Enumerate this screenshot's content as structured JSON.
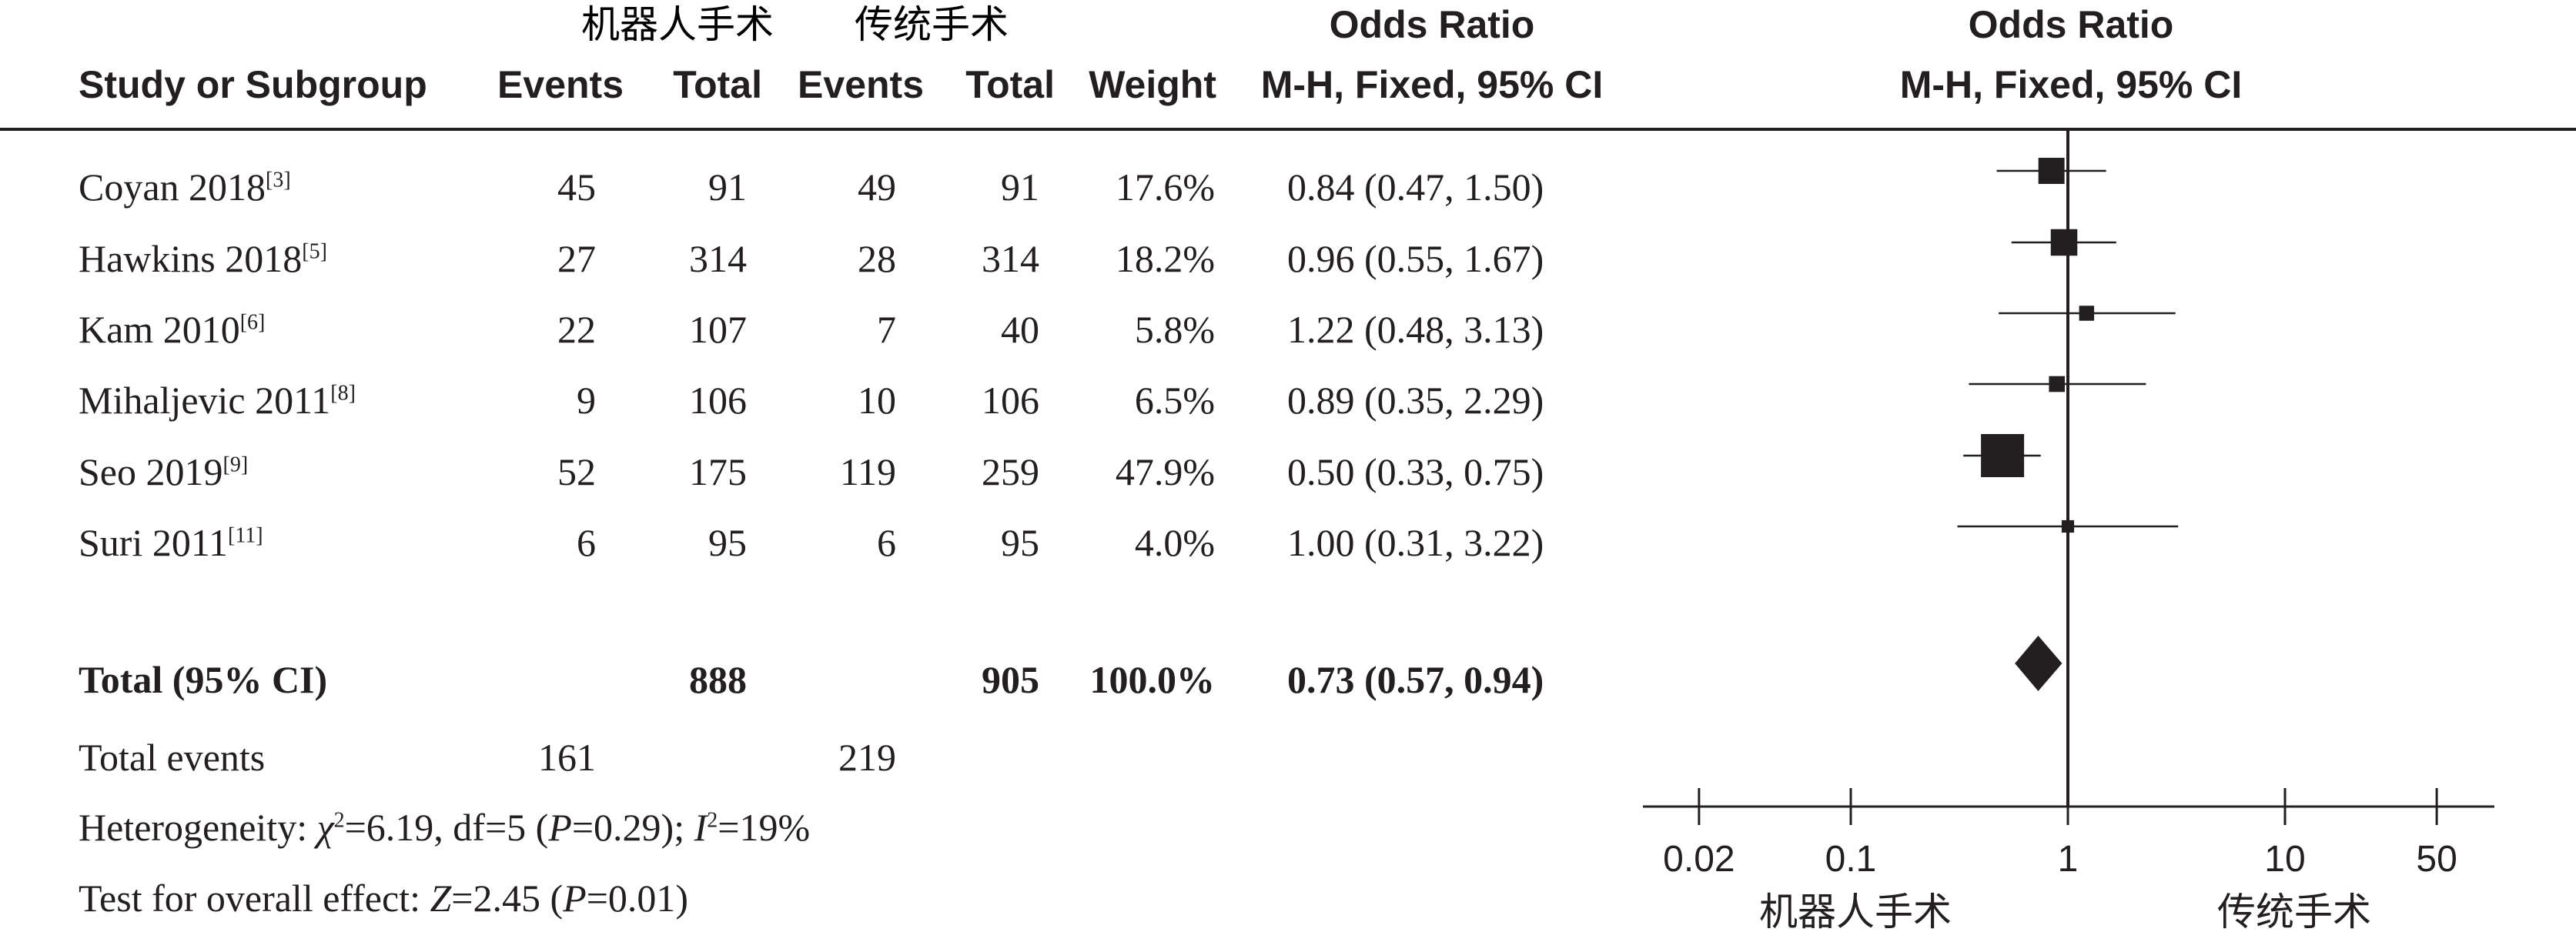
{
  "header": {
    "group_experimental": "机器人手术",
    "group_control": "传统手术",
    "study_col": "Study or Subgroup",
    "events_col": "Events",
    "total_col": "Total",
    "weight_col": "Weight",
    "or_title": "Odds Ratio",
    "or_method": "M-H, Fixed, 95% CI",
    "plot_title": "Odds Ratio",
    "plot_method": "M-H, Fixed, 95% CI"
  },
  "studies": [
    {
      "name": "Coyan 2018",
      "ref": "[3]",
      "e1": "45",
      "t1": "91",
      "e2": "49",
      "t2": "91",
      "weight": "17.6%",
      "or": "0.84 (0.47, 1.50)"
    },
    {
      "name": "Hawkins 2018",
      "ref": "[5]",
      "e1": "27",
      "t1": "314",
      "e2": "28",
      "t2": "314",
      "weight": "18.2%",
      "or": "0.96 (0.55, 1.67)"
    },
    {
      "name": "Kam 2010",
      "ref": "[6]",
      "e1": "22",
      "t1": "107",
      "e2": "7",
      "t2": "40",
      "weight": "5.8%",
      "or": "1.22 (0.48, 3.13)"
    },
    {
      "name": "Mihaljevic 2011",
      "ref": "[8]",
      "e1": "9",
      "t1": "106",
      "e2": "10",
      "t2": "106",
      "weight": "6.5%",
      "or": "0.89 (0.35, 2.29)"
    },
    {
      "name": "Seo 2019",
      "ref": "[9]",
      "e1": "52",
      "t1": "175",
      "e2": "119",
      "t2": "259",
      "weight": "47.9%",
      "or": "0.50 (0.33, 0.75)"
    },
    {
      "name": "Suri 2011",
      "ref": "[11]",
      "e1": "6",
      "t1": "95",
      "e2": "6",
      "t2": "95",
      "weight": "4.0%",
      "or": "1.00 (0.31, 3.22)"
    }
  ],
  "total": {
    "label": "Total (95% CI)",
    "t1": "888",
    "t2": "905",
    "weight": "100.0%",
    "or": "0.73 (0.57, 0.94)"
  },
  "total_events": {
    "label": "Total events",
    "e1": "161",
    "e2": "219"
  },
  "heterogeneity": {
    "prefix": "Heterogeneity: ",
    "chi": "χ",
    "chi_sup": "2",
    "chi_rest": "=6.19, df=5 (",
    "p": "P",
    "p_rest": "=0.29); ",
    "i": "I",
    "i_sup": "2",
    "i_rest": "=19%"
  },
  "overall": {
    "prefix": "Test for overall effect: ",
    "z": "Z",
    "z_rest": "=2.45 (",
    "p": "P",
    "p_rest": "=0.01)"
  },
  "chart_data": {
    "type": "forest",
    "scale": "log",
    "xlim": [
      0.02,
      50
    ],
    "ticks": [
      0.02,
      0.1,
      1,
      10,
      50
    ],
    "tick_labels": [
      "0.02",
      "0.1",
      "1",
      "10",
      "50"
    ],
    "favours_left": "机器人手术",
    "favours_right": "传统手术",
    "reference": 1,
    "series": [
      {
        "name": "Coyan 2018",
        "or": 0.84,
        "lo": 0.47,
        "hi": 1.5,
        "weight": 17.6
      },
      {
        "name": "Hawkins 2018",
        "or": 0.96,
        "lo": 0.55,
        "hi": 1.67,
        "weight": 18.2
      },
      {
        "name": "Kam 2010",
        "or": 1.22,
        "lo": 0.48,
        "hi": 3.13,
        "weight": 5.8
      },
      {
        "name": "Mihaljevic 2011",
        "or": 0.89,
        "lo": 0.35,
        "hi": 2.29,
        "weight": 6.5
      },
      {
        "name": "Seo 2019",
        "or": 0.5,
        "lo": 0.33,
        "hi": 0.75,
        "weight": 47.9
      },
      {
        "name": "Suri 2011",
        "or": 1.0,
        "lo": 0.31,
        "hi": 3.22,
        "weight": 4.0
      }
    ],
    "pooled": {
      "or": 0.73,
      "lo": 0.57,
      "hi": 0.94
    }
  }
}
